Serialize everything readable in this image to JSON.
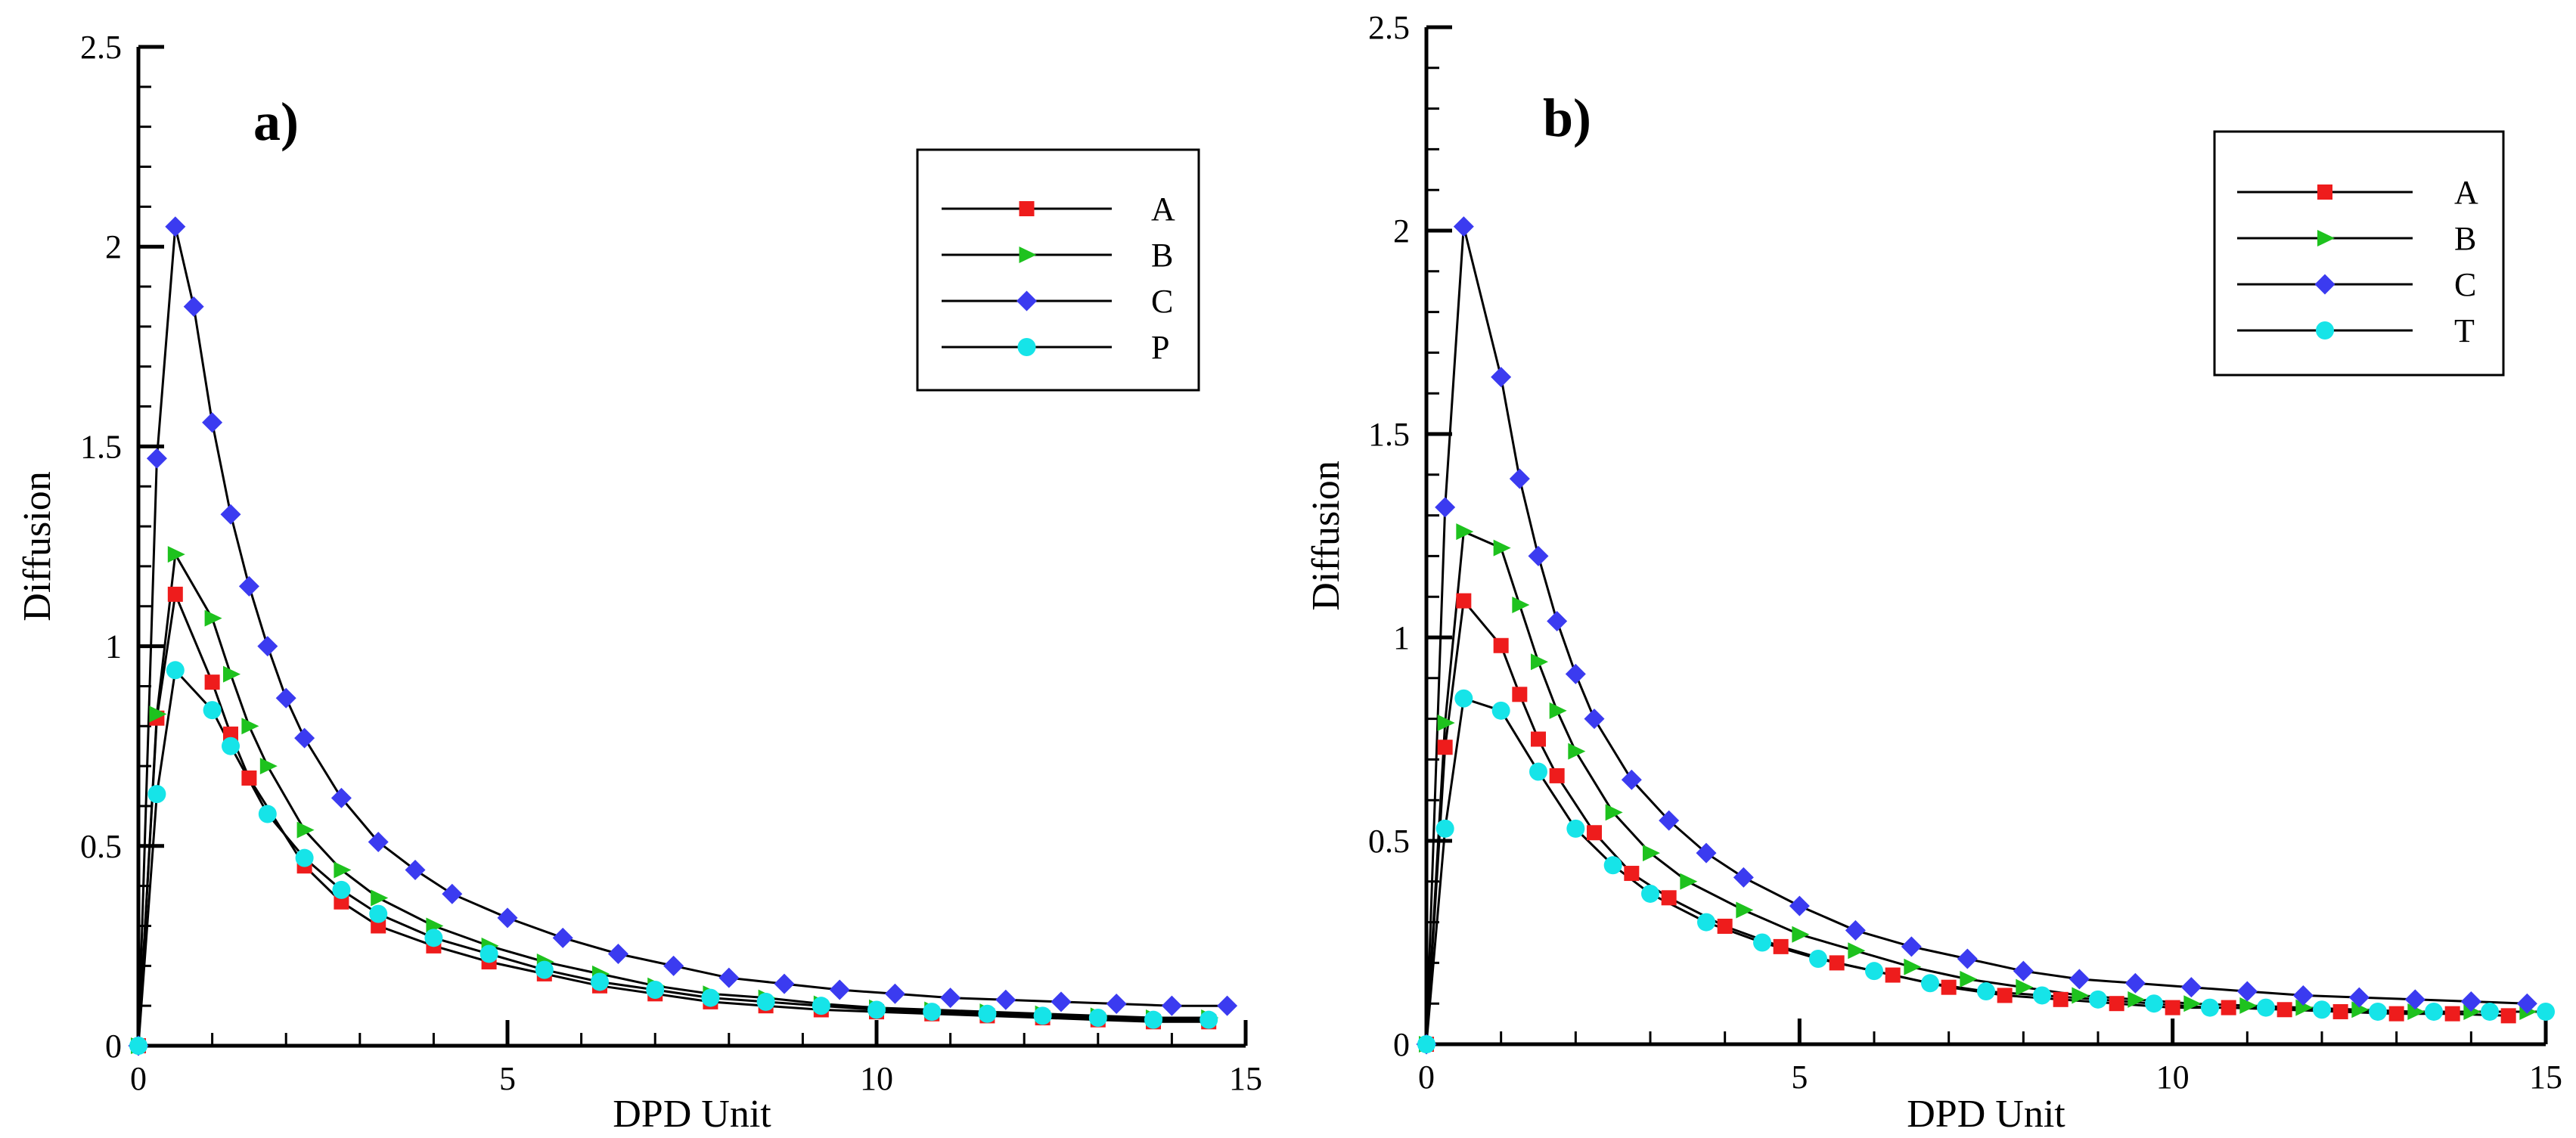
{
  "colors": {
    "A": "#ee1c1c",
    "B": "#1ec21e",
    "C": "#3b3bf0",
    "P": "#16e4e8",
    "T": "#16e4e8",
    "line": "#000000"
  },
  "chart_data": [
    {
      "type": "line",
      "panel_label": "a)",
      "xlabel": "DPD Unit",
      "ylabel": "Diffusion",
      "xlim": [
        0,
        15
      ],
      "ylim": [
        0,
        2.5
      ],
      "xticks": [
        "0",
        "5",
        "10",
        "15"
      ],
      "yticks": [
        "0",
        "0.5",
        "1",
        "1.5",
        "2",
        "2.5"
      ],
      "legend_position": "top-right",
      "series": [
        {
          "name": "A",
          "marker": "square",
          "x": [
            0,
            0.25,
            0.5,
            1.0,
            1.25,
            1.5,
            2.25,
            2.75,
            3.25,
            4.0,
            4.75,
            5.5,
            6.25,
            7.0,
            7.75,
            8.5,
            9.25,
            10.0,
            10.75,
            11.5,
            12.25,
            13.0,
            13.75,
            14.5
          ],
          "y": [
            0,
            0.82,
            1.13,
            0.91,
            0.78,
            0.67,
            0.45,
            0.36,
            0.3,
            0.25,
            0.21,
            0.18,
            0.15,
            0.13,
            0.11,
            0.1,
            0.09,
            0.085,
            0.08,
            0.075,
            0.07,
            0.065,
            0.06,
            0.06
          ]
        },
        {
          "name": "B",
          "marker": "triangle-right",
          "x": [
            0,
            0.25,
            0.5,
            1.0,
            1.25,
            1.5,
            1.75,
            2.25,
            2.75,
            3.25,
            4.0,
            4.75,
            5.5,
            6.25,
            7.0,
            7.75,
            8.5,
            9.25,
            10.0,
            10.75,
            11.5,
            12.25,
            13.0,
            13.75,
            14.5
          ],
          "y": [
            0,
            0.83,
            1.23,
            1.07,
            0.93,
            0.8,
            0.7,
            0.54,
            0.44,
            0.37,
            0.3,
            0.25,
            0.21,
            0.18,
            0.15,
            0.13,
            0.12,
            0.105,
            0.095,
            0.09,
            0.085,
            0.08,
            0.075,
            0.07,
            0.07
          ]
        },
        {
          "name": "C",
          "marker": "diamond",
          "x": [
            0,
            0.25,
            0.5,
            0.75,
            1.0,
            1.25,
            1.5,
            1.75,
            2.0,
            2.25,
            2.75,
            3.25,
            3.75,
            4.25,
            5.0,
            5.75,
            6.5,
            7.25,
            8.0,
            8.75,
            9.5,
            10.25,
            11.0,
            11.75,
            12.5,
            13.25,
            14.0,
            14.75
          ],
          "y": [
            0,
            1.47,
            2.05,
            1.85,
            1.56,
            1.33,
            1.15,
            1.0,
            0.87,
            0.77,
            0.62,
            0.51,
            0.44,
            0.38,
            0.32,
            0.27,
            0.23,
            0.2,
            0.17,
            0.155,
            0.14,
            0.13,
            0.12,
            0.115,
            0.11,
            0.105,
            0.1,
            0.1
          ]
        },
        {
          "name": "P",
          "marker": "circle",
          "x": [
            0,
            0.25,
            0.5,
            1.0,
            1.25,
            1.75,
            2.25,
            2.75,
            3.25,
            4.0,
            4.75,
            5.5,
            6.25,
            7.0,
            7.75,
            8.5,
            9.25,
            10.0,
            10.75,
            11.5,
            12.25,
            13.0,
            13.75,
            14.5
          ],
          "y": [
            0,
            0.63,
            0.94,
            0.84,
            0.75,
            0.58,
            0.47,
            0.39,
            0.33,
            0.27,
            0.23,
            0.19,
            0.16,
            0.14,
            0.12,
            0.11,
            0.1,
            0.09,
            0.085,
            0.08,
            0.075,
            0.07,
            0.065,
            0.065
          ]
        }
      ]
    },
    {
      "type": "line",
      "panel_label": "b)",
      "xlabel": "DPD Unit",
      "ylabel": "Diffusion",
      "xlim": [
        0,
        15
      ],
      "ylim": [
        0,
        2.5
      ],
      "xticks": [
        "0",
        "5",
        "10",
        "15"
      ],
      "yticks": [
        "0",
        "0.5",
        "1",
        "1.5",
        "2",
        "2.5"
      ],
      "legend_position": "top-right",
      "series": [
        {
          "name": "A",
          "marker": "square",
          "x": [
            0,
            0.25,
            0.5,
            1.0,
            1.25,
            1.5,
            1.75,
            2.25,
            2.75,
            3.25,
            4.0,
            4.75,
            5.5,
            6.25,
            7.0,
            7.75,
            8.5,
            9.25,
            10.0,
            10.75,
            11.5,
            12.25,
            13.0,
            13.75,
            14.5
          ],
          "y": [
            0,
            0.73,
            1.09,
            0.98,
            0.86,
            0.75,
            0.66,
            0.52,
            0.42,
            0.36,
            0.29,
            0.24,
            0.2,
            0.17,
            0.14,
            0.12,
            0.11,
            0.1,
            0.09,
            0.09,
            0.085,
            0.08,
            0.075,
            0.075,
            0.07
          ]
        },
        {
          "name": "B",
          "marker": "triangle-right",
          "x": [
            0,
            0.25,
            0.5,
            1.0,
            1.25,
            1.5,
            1.75,
            2.0,
            2.5,
            3.0,
            3.5,
            4.25,
            5.0,
            5.75,
            6.5,
            7.25,
            8.0,
            8.75,
            9.5,
            10.25,
            11.0,
            11.75,
            12.5,
            13.25,
            14.0,
            14.75
          ],
          "y": [
            0,
            0.79,
            1.26,
            1.22,
            1.08,
            0.94,
            0.82,
            0.72,
            0.57,
            0.47,
            0.4,
            0.33,
            0.27,
            0.23,
            0.19,
            0.16,
            0.14,
            0.12,
            0.11,
            0.1,
            0.095,
            0.09,
            0.085,
            0.08,
            0.08,
            0.08
          ]
        },
        {
          "name": "C",
          "marker": "diamond",
          "x": [
            0,
            0.25,
            0.5,
            1.0,
            1.25,
            1.5,
            1.75,
            2.0,
            2.25,
            2.75,
            3.25,
            3.75,
            4.25,
            5.0,
            5.75,
            6.5,
            7.25,
            8.0,
            8.75,
            9.5,
            10.25,
            11.0,
            11.75,
            12.5,
            13.25,
            14.0,
            14.75
          ],
          "y": [
            0,
            1.32,
            2.01,
            1.64,
            1.39,
            1.2,
            1.04,
            0.91,
            0.8,
            0.65,
            0.55,
            0.47,
            0.41,
            0.34,
            0.28,
            0.24,
            0.21,
            0.18,
            0.16,
            0.15,
            0.14,
            0.13,
            0.12,
            0.115,
            0.11,
            0.105,
            0.1
          ]
        },
        {
          "name": "T",
          "marker": "circle",
          "x": [
            0,
            0.25,
            0.5,
            1.0,
            1.5,
            2.0,
            2.5,
            3.0,
            3.75,
            4.5,
            5.25,
            6.0,
            6.75,
            7.5,
            8.25,
            9.0,
            9.75,
            10.5,
            11.25,
            12.0,
            12.75,
            13.5,
            14.25,
            15.0
          ],
          "y": [
            0,
            0.53,
            0.85,
            0.82,
            0.67,
            0.53,
            0.44,
            0.37,
            0.3,
            0.25,
            0.21,
            0.18,
            0.15,
            0.13,
            0.12,
            0.11,
            0.1,
            0.09,
            0.09,
            0.085,
            0.08,
            0.08,
            0.08,
            0.08
          ]
        }
      ]
    }
  ]
}
